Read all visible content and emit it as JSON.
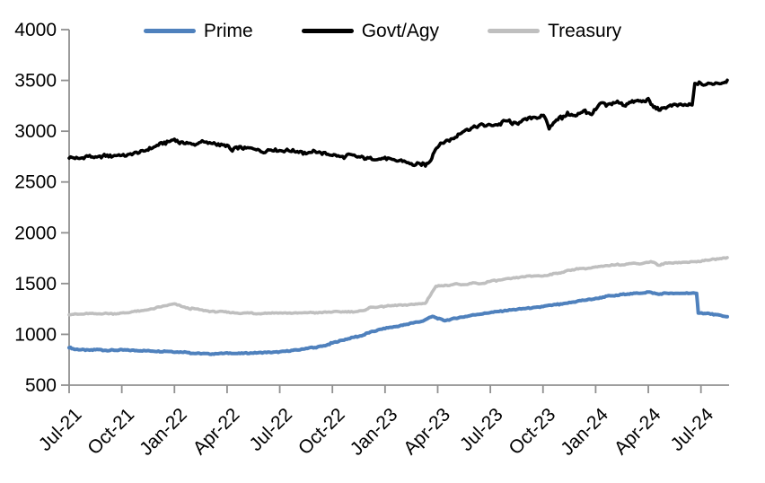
{
  "chart_data": {
    "type": "line",
    "title": "",
    "xlabel": "",
    "ylabel": "",
    "ylim": [
      500,
      4000
    ],
    "y_ticks": [
      500,
      1000,
      1500,
      2000,
      2500,
      3000,
      3500,
      4000
    ],
    "x_tick_labels": [
      "Jul-21",
      "Oct-21",
      "Jan-22",
      "Apr-22",
      "Jul-22",
      "Oct-22",
      "Jan-23",
      "Apr-23",
      "Jul-23",
      "Oct-23",
      "Jan-24",
      "Apr-24",
      "Jul-24"
    ],
    "x_tick_months": [
      0,
      3,
      6,
      9,
      12,
      15,
      18,
      21,
      24,
      27,
      30,
      33,
      36
    ],
    "x_range_months": [
      0,
      37.5
    ],
    "grid": false,
    "legend_position": "top",
    "axis_color": "#909090",
    "text_color": "#000000",
    "series": [
      {
        "name": "Prime",
        "color": "#4F81BD",
        "points": [
          [
            0,
            878
          ],
          [
            0.3,
            858
          ],
          [
            0.7,
            852
          ],
          [
            1,
            850
          ],
          [
            2,
            848
          ],
          [
            3,
            845
          ],
          [
            4,
            840
          ],
          [
            5,
            834
          ],
          [
            6,
            826
          ],
          [
            7,
            818
          ],
          [
            8,
            812
          ],
          [
            9,
            810
          ],
          [
            9.5,
            812
          ],
          [
            10,
            814
          ],
          [
            11,
            818
          ],
          [
            12,
            826
          ],
          [
            13,
            846
          ],
          [
            14,
            872
          ],
          [
            15,
            912
          ],
          [
            16,
            958
          ],
          [
            17,
            1008
          ],
          [
            18,
            1062
          ],
          [
            19,
            1092
          ],
          [
            20,
            1122
          ],
          [
            20.7,
            1178
          ],
          [
            21,
            1162
          ],
          [
            21.4,
            1140
          ],
          [
            22,
            1158
          ],
          [
            23,
            1188
          ],
          [
            24,
            1214
          ],
          [
            25,
            1234
          ],
          [
            26,
            1252
          ],
          [
            27,
            1270
          ],
          [
            28,
            1298
          ],
          [
            29,
            1324
          ],
          [
            30,
            1348
          ],
          [
            31,
            1382
          ],
          [
            32,
            1402
          ],
          [
            33,
            1418
          ],
          [
            33.6,
            1398
          ],
          [
            34,
            1410
          ],
          [
            34.6,
            1402
          ],
          [
            35.2,
            1408
          ],
          [
            35.75,
            1404
          ],
          [
            35.85,
            1214
          ],
          [
            36.3,
            1205
          ],
          [
            36.8,
            1190
          ],
          [
            37.2,
            1180
          ],
          [
            37.5,
            1174
          ]
        ]
      },
      {
        "name": "Govt/Agy",
        "color": "#000000",
        "points": [
          [
            0,
            2748
          ],
          [
            0.5,
            2738
          ],
          [
            1,
            2760
          ],
          [
            1.5,
            2748
          ],
          [
            2,
            2768
          ],
          [
            2.5,
            2758
          ],
          [
            3,
            2772
          ],
          [
            3.5,
            2780
          ],
          [
            4,
            2800
          ],
          [
            4.5,
            2830
          ],
          [
            5,
            2858
          ],
          [
            5.5,
            2890
          ],
          [
            6,
            2928
          ],
          [
            6.3,
            2890
          ],
          [
            6.7,
            2900
          ],
          [
            7,
            2878
          ],
          [
            7.5,
            2888
          ],
          [
            8,
            2868
          ],
          [
            8.5,
            2878
          ],
          [
            9,
            2868
          ],
          [
            9.3,
            2810
          ],
          [
            9.7,
            2828
          ],
          [
            10,
            2818
          ],
          [
            10.5,
            2825
          ],
          [
            11,
            2812
          ],
          [
            11.5,
            2818
          ],
          [
            12,
            2805
          ],
          [
            12.5,
            2800
          ],
          [
            13,
            2792
          ],
          [
            13.5,
            2795
          ],
          [
            14,
            2785
          ],
          [
            14.5,
            2788
          ],
          [
            15,
            2772
          ],
          [
            15.5,
            2760
          ],
          [
            16,
            2752
          ],
          [
            16.5,
            2740
          ],
          [
            17,
            2730
          ],
          [
            17.5,
            2735
          ],
          [
            18,
            2722
          ],
          [
            18.5,
            2712
          ],
          [
            19,
            2700
          ],
          [
            19.5,
            2678
          ],
          [
            20,
            2660
          ],
          [
            20.3,
            2668
          ],
          [
            20.6,
            2720
          ],
          [
            20.8,
            2800
          ],
          [
            21,
            2852
          ],
          [
            21.5,
            2905
          ],
          [
            22,
            2948
          ],
          [
            22.5,
            2995
          ],
          [
            23,
            3030
          ],
          [
            23.5,
            3058
          ],
          [
            24,
            3068
          ],
          [
            24.5,
            3075
          ],
          [
            25,
            3090
          ],
          [
            25.5,
            3085
          ],
          [
            26,
            3108
          ],
          [
            26.5,
            3130
          ],
          [
            26.9,
            3158
          ],
          [
            27.1,
            3155
          ],
          [
            27.35,
            3040
          ],
          [
            27.6,
            3080
          ],
          [
            28,
            3125
          ],
          [
            28.4,
            3188
          ],
          [
            28.7,
            3160
          ],
          [
            29,
            3155
          ],
          [
            29.4,
            3200
          ],
          [
            29.7,
            3180
          ],
          [
            30,
            3212
          ],
          [
            30.3,
            3278
          ],
          [
            30.6,
            3240
          ],
          [
            31,
            3272
          ],
          [
            31.4,
            3290
          ],
          [
            31.7,
            3262
          ],
          [
            32,
            3270
          ],
          [
            32.4,
            3292
          ],
          [
            32.7,
            3282
          ],
          [
            33,
            3298
          ],
          [
            33.3,
            3240
          ],
          [
            33.6,
            3222
          ],
          [
            34,
            3235
          ],
          [
            34.5,
            3248
          ],
          [
            35,
            3255
          ],
          [
            35.5,
            3258
          ],
          [
            35.65,
            3470
          ],
          [
            35.9,
            3480
          ],
          [
            36.15,
            3445
          ],
          [
            36.5,
            3458
          ],
          [
            37,
            3472
          ],
          [
            37.3,
            3490
          ],
          [
            37.5,
            3502
          ]
        ]
      },
      {
        "name": "Treasury",
        "color": "#BFBFBF",
        "points": [
          [
            0,
            1198
          ],
          [
            0.5,
            1202
          ],
          [
            1,
            1205
          ],
          [
            1.5,
            1202
          ],
          [
            2,
            1208
          ],
          [
            2.5,
            1205
          ],
          [
            3,
            1212
          ],
          [
            3.5,
            1218
          ],
          [
            4,
            1228
          ],
          [
            4.5,
            1248
          ],
          [
            5,
            1262
          ],
          [
            5.5,
            1280
          ],
          [
            6,
            1298
          ],
          [
            6.4,
            1278
          ],
          [
            7,
            1252
          ],
          [
            7.5,
            1240
          ],
          [
            8,
            1228
          ],
          [
            8.5,
            1222
          ],
          [
            9,
            1218
          ],
          [
            9.5,
            1210
          ],
          [
            10,
            1205
          ],
          [
            10.5,
            1208
          ],
          [
            11,
            1210
          ],
          [
            11.5,
            1212
          ],
          [
            12,
            1214
          ],
          [
            13,
            1214
          ],
          [
            14,
            1216
          ],
          [
            15,
            1220
          ],
          [
            16,
            1224
          ],
          [
            16.8,
            1228
          ],
          [
            17.1,
            1268
          ],
          [
            17.5,
            1272
          ],
          [
            18,
            1276
          ],
          [
            18.5,
            1280
          ],
          [
            19,
            1288
          ],
          [
            19.5,
            1294
          ],
          [
            20,
            1300
          ],
          [
            20.3,
            1306
          ],
          [
            20.6,
            1390
          ],
          [
            20.9,
            1472
          ],
          [
            21.2,
            1482
          ],
          [
            21.5,
            1478
          ],
          [
            22,
            1492
          ],
          [
            22.5,
            1488
          ],
          [
            23,
            1502
          ],
          [
            23.5,
            1498
          ],
          [
            24,
            1518
          ],
          [
            24.5,
            1535
          ],
          [
            25,
            1548
          ],
          [
            25.5,
            1555
          ],
          [
            26,
            1565
          ],
          [
            26.5,
            1572
          ],
          [
            27,
            1580
          ],
          [
            27.5,
            1595
          ],
          [
            28,
            1612
          ],
          [
            28.5,
            1630
          ],
          [
            29,
            1642
          ],
          [
            29.5,
            1652
          ],
          [
            30,
            1660
          ],
          [
            30.5,
            1672
          ],
          [
            31,
            1682
          ],
          [
            31.5,
            1690
          ],
          [
            32,
            1696
          ],
          [
            32.5,
            1700
          ],
          [
            33,
            1706
          ],
          [
            33.3,
            1712
          ],
          [
            33.6,
            1678
          ],
          [
            34,
            1698
          ],
          [
            34.5,
            1706
          ],
          [
            35,
            1710
          ],
          [
            35.5,
            1714
          ],
          [
            36,
            1720
          ],
          [
            36.5,
            1732
          ],
          [
            37,
            1745
          ],
          [
            37.5,
            1756
          ]
        ]
      }
    ]
  }
}
